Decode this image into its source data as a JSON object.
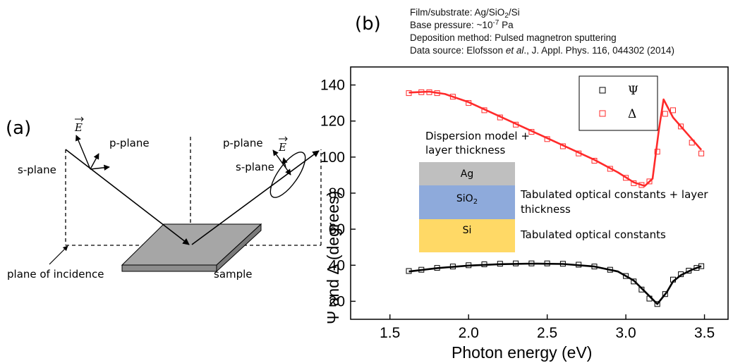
{
  "panel_a": {
    "label": "(a)",
    "e_field": "E",
    "p_plane": "p-plane",
    "s_plane": "s-plane",
    "plane_of_incidence": "plane of incidence",
    "sample": "sample"
  },
  "panel_b": {
    "label": "(b)",
    "info": {
      "film_prefix": "Film/substrate: Ag/SiO",
      "film_sub": "2",
      "film_suffix": "/Si",
      "pressure_prefix": "Base pressure: ~10",
      "pressure_exp": "-7",
      "pressure_suffix": " Pa",
      "method": "Deposition method: Pulsed magnetron sputtering",
      "source_prefix": "Data source: Elofsson ",
      "source_italic": "et al",
      "source_suffix": "., J. Appl. Phys. 116, 044302 (2014)"
    },
    "stack": {
      "model_line1": "Dispersion model +",
      "model_line2": "layer thickness",
      "layer_ag": "Ag",
      "layer_sio2_prefix": "SiO",
      "layer_sio2_sub": "2",
      "layer_si": "Si",
      "sio2_note_line1": "Tabulated optical constants + layer",
      "sio2_note_line2": "thickness",
      "si_note": "Tabulated optical constants",
      "colors": {
        "ag": "#bfbfbf",
        "sio2": "#8eaadb",
        "si": "#ffd966"
      }
    }
  },
  "chart_data": {
    "type": "scatter",
    "xlabel": "Photon energy (eV)",
    "ylabel": "Ψ and Δ (degrees)",
    "xlim": [
      1.25,
      3.65
    ],
    "ylim": [
      10,
      150
    ],
    "xticks": [
      "1.5",
      "2.0",
      "2.5",
      "3.0",
      "3.5"
    ],
    "yticks": [
      "20",
      "40",
      "60",
      "80",
      "100",
      "120",
      "140"
    ],
    "legend": {
      "position": "top-right",
      "entries": [
        "Ψ",
        "Δ"
      ]
    },
    "series": [
      {
        "name": "Ψ",
        "color": "#000000",
        "measured": [
          [
            1.62,
            36.8
          ],
          [
            1.7,
            37.5
          ],
          [
            1.8,
            38.5
          ],
          [
            1.9,
            39.3
          ],
          [
            2.0,
            40.0
          ],
          [
            2.1,
            40.5
          ],
          [
            2.2,
            40.8
          ],
          [
            2.3,
            41.0
          ],
          [
            2.4,
            41.0
          ],
          [
            2.5,
            41.0
          ],
          [
            2.6,
            40.8
          ],
          [
            2.7,
            40.3
          ],
          [
            2.8,
            39.3
          ],
          [
            2.9,
            37.5
          ],
          [
            3.0,
            34.0
          ],
          [
            3.05,
            31.0
          ],
          [
            3.1,
            26.5
          ],
          [
            3.15,
            21.5
          ],
          [
            3.2,
            18.5
          ],
          [
            3.25,
            24.0
          ],
          [
            3.3,
            32.0
          ],
          [
            3.35,
            35.0
          ],
          [
            3.4,
            37.0
          ],
          [
            3.45,
            38.5
          ],
          [
            3.48,
            39.5
          ]
        ],
        "fit": [
          [
            1.62,
            36.5
          ],
          [
            1.8,
            38.4
          ],
          [
            2.0,
            39.8
          ],
          [
            2.2,
            40.6
          ],
          [
            2.4,
            40.9
          ],
          [
            2.6,
            40.7
          ],
          [
            2.8,
            39.3
          ],
          [
            2.95,
            36.5
          ],
          [
            3.05,
            31.5
          ],
          [
            3.12,
            25.5
          ],
          [
            3.2,
            18.5
          ],
          [
            3.26,
            25.0
          ],
          [
            3.3,
            31.0
          ],
          [
            3.35,
            34.5
          ],
          [
            3.42,
            37.5
          ],
          [
            3.48,
            39.5
          ]
        ]
      },
      {
        "name": "Δ",
        "color": "#ff2a2a",
        "measured": [
          [
            1.62,
            135.5
          ],
          [
            1.7,
            136.0
          ],
          [
            1.75,
            136.0
          ],
          [
            1.8,
            135.5
          ],
          [
            1.9,
            133.5
          ],
          [
            2.0,
            130.0
          ],
          [
            2.1,
            126.0
          ],
          [
            2.2,
            122.0
          ],
          [
            2.3,
            118.0
          ],
          [
            2.4,
            114.0
          ],
          [
            2.5,
            110.0
          ],
          [
            2.6,
            106.0
          ],
          [
            2.7,
            102.0
          ],
          [
            2.8,
            98.0
          ],
          [
            2.9,
            93.5
          ],
          [
            3.0,
            88.5
          ],
          [
            3.05,
            85.5
          ],
          [
            3.1,
            84.5
          ],
          [
            3.15,
            86.5
          ],
          [
            3.2,
            103.0
          ],
          [
            3.25,
            124.0
          ],
          [
            3.3,
            126.0
          ],
          [
            3.35,
            117.0
          ],
          [
            3.42,
            108.0
          ],
          [
            3.48,
            102.0
          ]
        ],
        "fit": [
          [
            1.62,
            135.8
          ],
          [
            1.75,
            136.3
          ],
          [
            1.85,
            135.0
          ],
          [
            2.0,
            130.5
          ],
          [
            2.2,
            122.5
          ],
          [
            2.4,
            114.5
          ],
          [
            2.6,
            106.5
          ],
          [
            2.8,
            98.5
          ],
          [
            2.95,
            91.5
          ],
          [
            3.05,
            86.0
          ],
          [
            3.12,
            84.0
          ],
          [
            3.17,
            88.0
          ],
          [
            3.21,
            115.0
          ],
          [
            3.24,
            132.0
          ],
          [
            3.3,
            122.0
          ],
          [
            3.4,
            112.0
          ],
          [
            3.48,
            104.0
          ]
        ]
      }
    ]
  }
}
